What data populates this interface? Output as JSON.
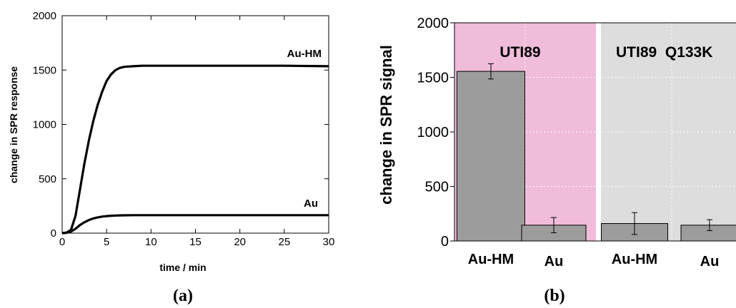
{
  "chart_data": [
    {
      "type": "line",
      "panel_label": "(a)",
      "xlabel": "time / min",
      "ylabel": "change in SPR response",
      "xlim": [
        0,
        30
      ],
      "ylim": [
        0,
        2000
      ],
      "x_ticks": [
        0,
        5,
        10,
        15,
        20,
        25,
        30
      ],
      "y_ticks": [
        0,
        500,
        1000,
        1500,
        2000
      ],
      "grid": false,
      "series": [
        {
          "name": "Au-HM",
          "x": [
            0,
            0.5,
            1,
            1.5,
            2,
            2.5,
            3,
            3.5,
            4,
            4.5,
            5,
            5.5,
            6,
            6.5,
            7,
            8,
            9,
            10,
            15,
            20,
            25,
            30
          ],
          "y": [
            0,
            5,
            30,
            160,
            400,
            640,
            850,
            1030,
            1180,
            1300,
            1400,
            1460,
            1500,
            1520,
            1530,
            1535,
            1540,
            1540,
            1540,
            1540,
            1540,
            1535
          ]
        },
        {
          "name": "Au",
          "x": [
            0,
            0.5,
            1,
            1.5,
            2,
            2.5,
            3,
            3.5,
            4,
            4.5,
            5,
            5.5,
            6,
            6.5,
            7,
            8,
            10,
            15,
            20,
            25,
            30
          ],
          "y": [
            0,
            3,
            15,
            40,
            75,
            100,
            120,
            135,
            145,
            152,
            157,
            160,
            162,
            163,
            164,
            165,
            165,
            165,
            165,
            165,
            165
          ]
        }
      ]
    },
    {
      "type": "bar",
      "panel_label": "(b)",
      "ylabel": "change in SPR signal",
      "ylim": [
        0,
        2000
      ],
      "y_ticks": [
        0,
        500,
        1000,
        1500,
        2000
      ],
      "grid": true,
      "groups": [
        {
          "label": "UTI89",
          "color": "#f0bcd9"
        },
        {
          "label": "UTI89  Q133K",
          "color": "#dcdddc"
        }
      ],
      "categories": [
        "Au-HM",
        "Au",
        "Au-HM",
        "Au"
      ],
      "values": [
        1555,
        145,
        160,
        145
      ],
      "errors": [
        70,
        70,
        100,
        50
      ],
      "bar_color": "#9c9c9c"
    }
  ]
}
